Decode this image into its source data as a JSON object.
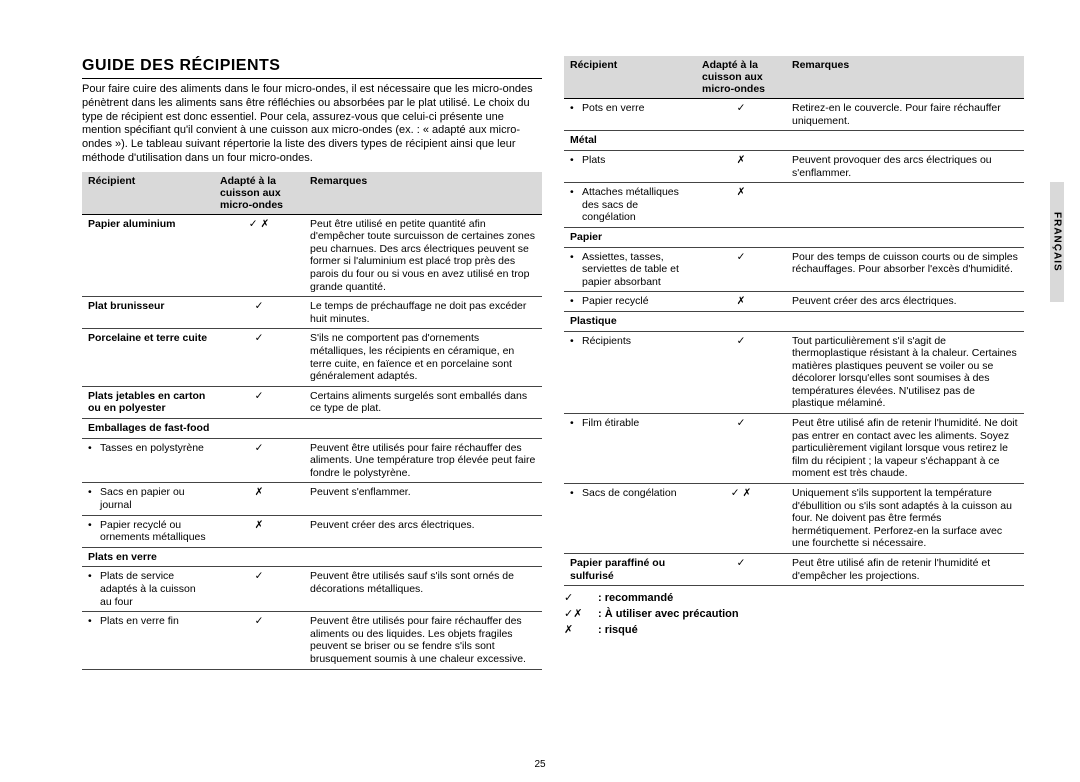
{
  "title": "GUIDE DES RÉCIPIENTS",
  "intro": "Pour faire cuire des aliments dans le four micro-ondes, il est nécessaire que les micro-ondes pénètrent dans les aliments sans être réfléchies ou absorbées par le plat utilisé. Le choix du type de récipient est donc essentiel. Pour cela, assurez-vous que celui-ci présente une mention spécifiant qu'il convient à une cuisson aux micro-ondes (ex. : « adapté aux micro-ondes »). Le tableau suivant répertorie la liste des divers types de récipient ainsi que leur méthode d'utilisation dans un four micro-ondes.",
  "headers": {
    "col1": "Récipient",
    "col2": "Adapté à la cuisson aux micro-ondes",
    "col3": "Remarques"
  },
  "left": [
    {
      "type": "row",
      "bold": true,
      "name": "Papier aluminium",
      "mark": "✓ ✗",
      "note": "Peut être utilisé en petite quantité afin d'empêcher toute surcuisson de certaines zones peu charnues. Des arcs électriques peuvent se former si l'aluminium est placé trop près des parois du four ou si vous en avez utilisé en trop grande quantité."
    },
    {
      "type": "row",
      "bold": true,
      "name": "Plat brunisseur",
      "mark": "✓",
      "note": "Le temps de préchauffage ne doit pas excéder huit minutes."
    },
    {
      "type": "row",
      "bold": true,
      "name": "Porcelaine et terre cuite",
      "mark": "✓",
      "note": "S'ils ne comportent pas d'ornements métalliques, les récipients en céramique, en terre cuite, en faïence et en porcelaine sont généralement adaptés."
    },
    {
      "type": "row",
      "bold": true,
      "name": "Plats jetables en carton ou en polyester",
      "mark": "✓",
      "note": "Certains aliments surgelés sont emballés dans ce type de plat."
    },
    {
      "type": "section",
      "name": "Emballages de fast-food"
    },
    {
      "type": "bullet",
      "name": "Tasses en polystyrène",
      "mark": "✓",
      "note": "Peuvent être utilisés pour faire réchauffer des aliments. Une température trop élevée peut faire fondre le polystyrène."
    },
    {
      "type": "bullet",
      "name": "Sacs en papier ou journal",
      "mark": "✗",
      "note": "Peuvent s'enflammer."
    },
    {
      "type": "bullet",
      "name": "Papier recyclé ou ornements métalliques",
      "mark": "✗",
      "note": "Peuvent créer des arcs électriques."
    },
    {
      "type": "section",
      "name": "Plats en verre"
    },
    {
      "type": "bullet",
      "name": "Plats de service adaptés à la cuisson au four",
      "mark": "✓",
      "note": "Peuvent être utilisés sauf s'ils sont ornés de décorations métalliques."
    },
    {
      "type": "bullet",
      "last": true,
      "name": "Plats en verre fin",
      "mark": "✓",
      "note": "Peuvent être utilisés pour faire réchauffer des aliments ou des liquides. Les objets fragiles peuvent se briser ou se fendre s'ils sont brusquement soumis à une chaleur excessive."
    }
  ],
  "right": [
    {
      "type": "bullet",
      "name": "Pots en verre",
      "mark": "✓",
      "note": "Retirez-en le couvercle. Pour faire réchauffer uniquement."
    },
    {
      "type": "section",
      "name": "Métal"
    },
    {
      "type": "bullet",
      "name": "Plats",
      "mark": "✗",
      "note": "Peuvent provoquer des arcs électriques ou s'enflammer."
    },
    {
      "type": "bullet",
      "name": "Attaches métalliques des sacs de congélation",
      "mark": "✗",
      "note": ""
    },
    {
      "type": "section",
      "name": "Papier"
    },
    {
      "type": "bullet",
      "name": "Assiettes, tasses, serviettes de table et papier absorbant",
      "mark": "✓",
      "note": "Pour des temps de cuisson courts ou de simples réchauffages. Pour absorber l'excès d'humidité."
    },
    {
      "type": "bullet",
      "name": "Papier recyclé",
      "mark": "✗",
      "note": "Peuvent créer des arcs électriques."
    },
    {
      "type": "section",
      "name": "Plastique"
    },
    {
      "type": "bullet",
      "name": "Récipients",
      "mark": "✓",
      "note": "Tout particulièrement s'il s'agit de thermoplastique résistant à la chaleur. Certaines matières plastiques peuvent se voiler ou se décolorer lorsqu'elles sont soumises à des températures élevées. N'utilisez pas de plastique mélaminé."
    },
    {
      "type": "bullet",
      "name": "Film étirable",
      "mark": "✓",
      "note": "Peut être utilisé afin de retenir l'humidité. Ne doit pas entrer en contact avec les aliments. Soyez particulièrement vigilant lorsque vous retirez le film du récipient ; la vapeur s'échappant à ce moment est très chaude."
    },
    {
      "type": "bullet",
      "name": "Sacs de congélation",
      "mark": "✓ ✗",
      "note": "Uniquement s'ils supportent la température d'ébullition ou s'ils sont adaptés à la cuisson au four. Ne doivent pas être fermés hermétiquement. Perforez-en la surface avec une fourchette si nécessaire."
    },
    {
      "type": "row",
      "bold": true,
      "last": true,
      "name": "Papier paraffiné ou sulfurisé",
      "mark": "✓",
      "note": "Peut être utilisé afin de retenir l'humidité et d'empêcher les projections."
    }
  ],
  "legend": [
    {
      "sym": "✓",
      "text": ": recommandé"
    },
    {
      "sym": "✓✗",
      "text": ": À utiliser avec précaution"
    },
    {
      "sym": "✗",
      "text": ": risqué"
    }
  ],
  "sidetab": "FRANÇAIS",
  "pagenum": "25"
}
